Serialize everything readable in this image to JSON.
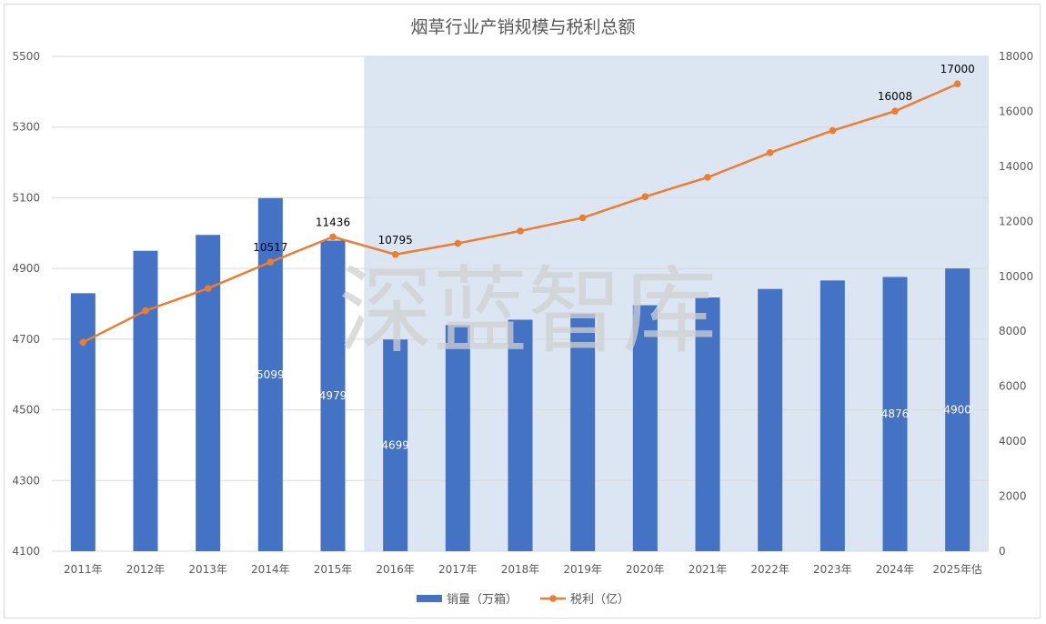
{
  "chart_data": {
    "type": "bar",
    "title": "烟草行业产销规模与税利总额",
    "categories": [
      "2011年",
      "2012年",
      "2013年",
      "2014年",
      "2015年",
      "2016年",
      "2017年",
      "2018年",
      "2019年",
      "2020年",
      "2021年",
      "2022年",
      "2023年",
      "2024年",
      "2025年估"
    ],
    "series": [
      {
        "name": "销量（万箱）",
        "type": "bar",
        "axis": "left",
        "color": "#4472C4",
        "values": [
          4830,
          4950,
          4995,
          5099,
          4979,
          4699,
          4740,
          4755,
          4772,
          4796,
          4818,
          4842,
          4866,
          4876,
          4900
        ],
        "data_labels": {
          "3": "5099",
          "4": "4979",
          "5": "4699",
          "13": "4876",
          "14": "4900"
        }
      },
      {
        "name": "税利（亿）",
        "type": "line",
        "axis": "right",
        "color": "#ED7D31",
        "values": [
          7600,
          8750,
          9560,
          10517,
          11436,
          10795,
          11200,
          11650,
          12130,
          12900,
          13600,
          14500,
          15300,
          16008,
          17000
        ],
        "data_labels": {
          "3": "10517",
          "4": "11436",
          "5": "10795",
          "13": "16008",
          "14": "17000"
        }
      }
    ],
    "y_left": {
      "min": 4100,
      "max": 5500,
      "ticks": [
        "4100",
        "4300",
        "4500",
        "4700",
        "4900",
        "5100",
        "5300",
        "5500"
      ]
    },
    "y_right": {
      "min": 0,
      "max": 18000,
      "ticks": [
        "0",
        "2000",
        "4000",
        "6000",
        "8000",
        "10000",
        "12000",
        "14000",
        "16000",
        "18000"
      ]
    },
    "grid": true,
    "legend": "bottom",
    "highlight": {
      "from_category": "2016年",
      "color": "#DCE6F2"
    },
    "watermark": "深蓝智库"
  }
}
